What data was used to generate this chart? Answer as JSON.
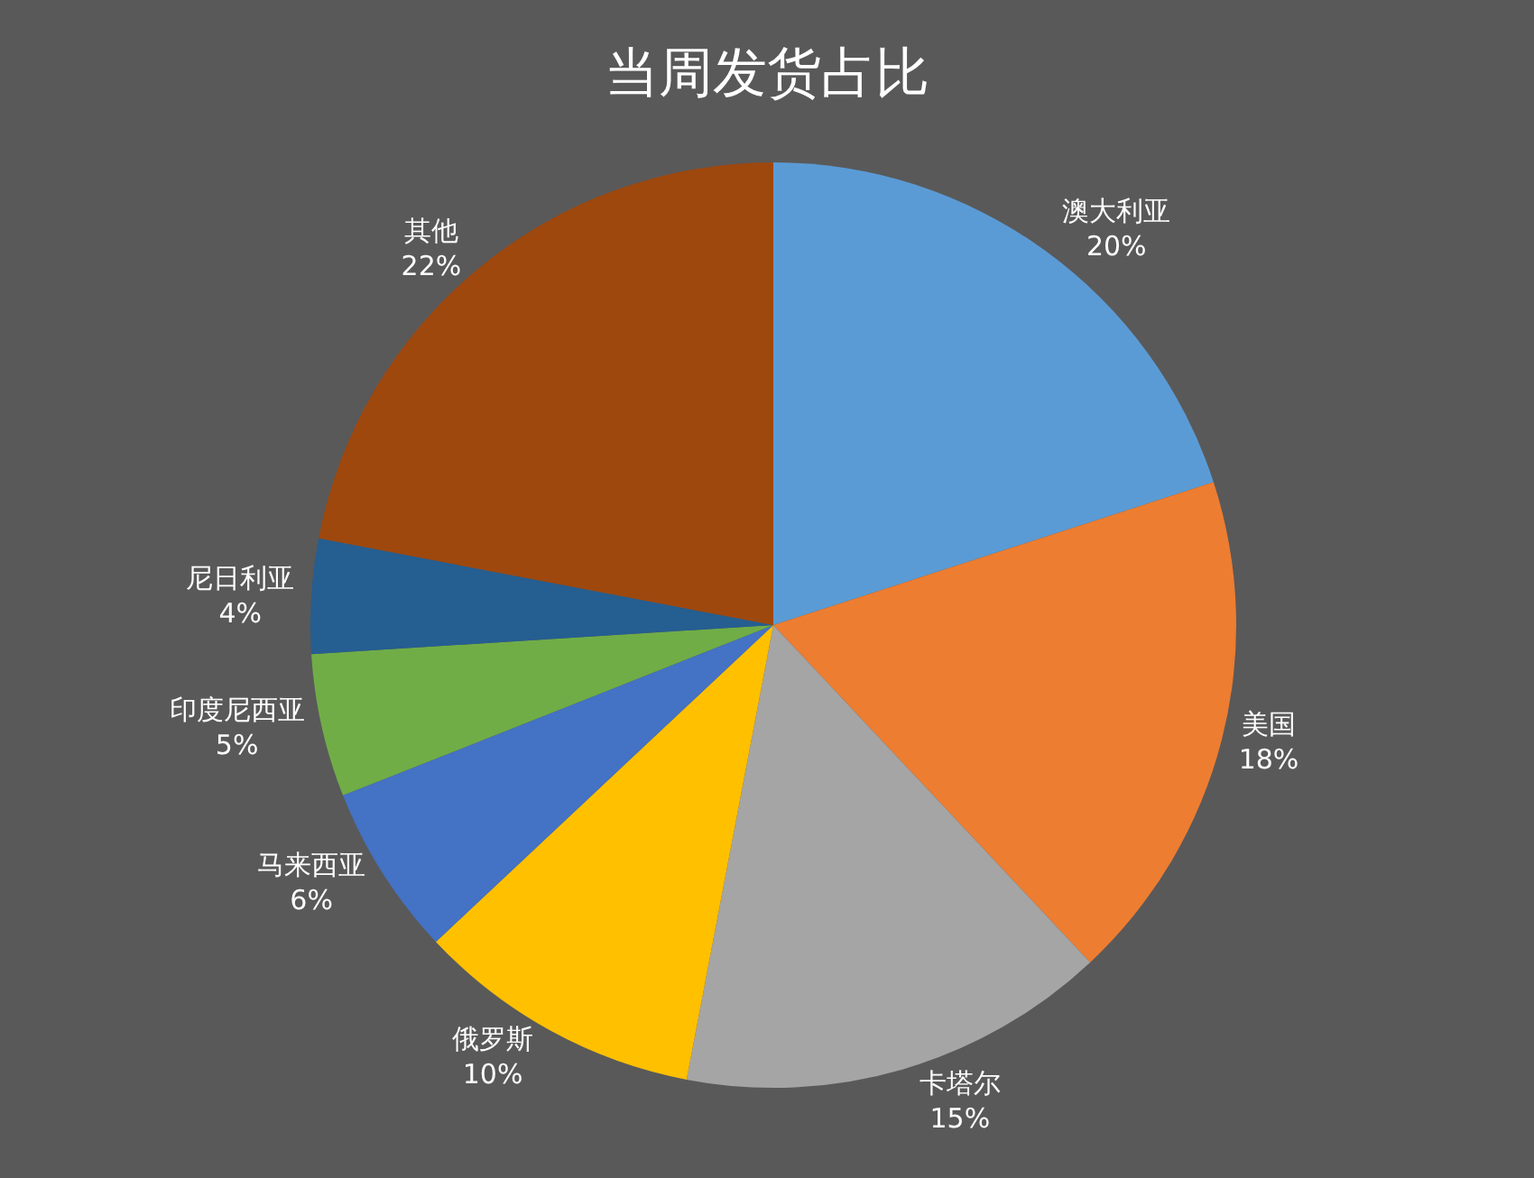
{
  "chart_data": {
    "type": "pie",
    "title": "当周发货占比",
    "categories": [
      "澳大利亚",
      "美国",
      "卡塔尔",
      "俄罗斯",
      "马来西亚",
      "印度尼西亚",
      "尼日利亚",
      "其他"
    ],
    "values": [
      20,
      18,
      15,
      10,
      6,
      5,
      4,
      22
    ],
    "value_labels": [
      "20%",
      "18%",
      "15%",
      "10%",
      "6%",
      "5%",
      "4%",
      "22%"
    ],
    "colors": [
      "#5b9bd5",
      "#ed7d31",
      "#a5a5a5",
      "#ffc000",
      "#4472c4",
      "#70ad47",
      "#255e91",
      "#9e480e"
    ],
    "legend": false
  }
}
